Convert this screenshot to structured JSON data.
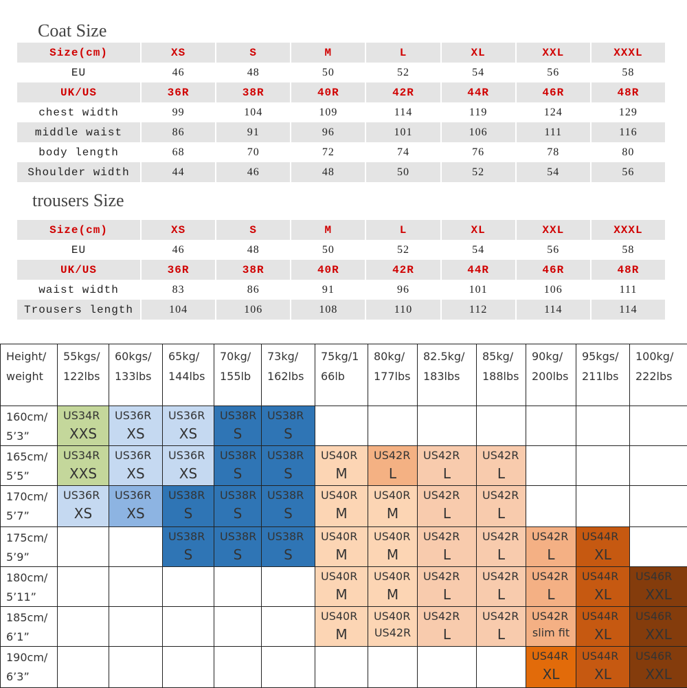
{
  "coat": {
    "title": "Coat Size",
    "rows": [
      [
        "Size(cm)",
        "XS",
        "S",
        "M",
        "L",
        "XL",
        "XXL",
        "XXXL"
      ],
      [
        "EU",
        "46",
        "48",
        "50",
        "52",
        "54",
        "56",
        "58"
      ],
      [
        "UK/US",
        "36R",
        "38R",
        "40R",
        "42R",
        "44R",
        "46R",
        "48R"
      ],
      [
        "chest width",
        "99",
        "104",
        "109",
        "114",
        "119",
        "124",
        "129"
      ],
      [
        "middle waist",
        "86",
        "91",
        "96",
        "101",
        "106",
        "111",
        "116"
      ],
      [
        "body length",
        "68",
        "70",
        "72",
        "74",
        "76",
        "78",
        "80"
      ],
      [
        "Shoulder width",
        "44",
        "46",
        "48",
        "50",
        "52",
        "54",
        "56"
      ]
    ]
  },
  "trousers": {
    "title": "trousers Size",
    "rows": [
      [
        "Size(cm)",
        "XS",
        "S",
        "M",
        "L",
        "XL",
        "XXL",
        "XXXL"
      ],
      [
        "EU",
        "46",
        "48",
        "50",
        "52",
        "54",
        "56",
        "58"
      ],
      [
        "UK/US",
        "36R",
        "38R",
        "40R",
        "42R",
        "44R",
        "46R",
        "48R"
      ],
      [
        "waist width",
        "83",
        "86",
        "91",
        "96",
        "101",
        "106",
        "111"
      ],
      [
        "Trousers length",
        "104",
        "106",
        "108",
        "110",
        "112",
        "114",
        "114"
      ]
    ]
  },
  "chart": {
    "header": [
      [
        "Height/",
        "weight"
      ],
      [
        "55kgs/",
        "122lbs"
      ],
      [
        "60kgs/",
        "133lbs"
      ],
      [
        "65kg/",
        "144lbs"
      ],
      [
        "70kg/",
        "155lb"
      ],
      [
        "73kg/",
        "162lbs"
      ],
      [
        "75kg/1",
        "66lb"
      ],
      [
        "80kg/",
        "177lbs"
      ],
      [
        "82.5kg/",
        "183lbs"
      ],
      [
        "85kg/",
        "188lbs"
      ],
      [
        "90kg/",
        "200lbs"
      ],
      [
        "95kgs/",
        "211lbs"
      ],
      [
        "100kg/",
        "222lbs"
      ]
    ],
    "rows": [
      {
        "label": [
          "160cm/",
          "5’3”"
        ],
        "cells": [
          {
            "code": "US34R",
            "size": "XXS",
            "color": "#c4d79b"
          },
          {
            "code": "US36R",
            "size": "XS",
            "color": "#c5d9f1"
          },
          {
            "code": "US36R",
            "size": "XS",
            "color": "#c5d9f1"
          },
          {
            "code": "US38R",
            "size": "S",
            "color": "#2f75b5"
          },
          {
            "code": "US38R",
            "size": "S",
            "color": "#2f75b5"
          },
          null,
          null,
          null,
          null,
          null,
          null,
          null
        ]
      },
      {
        "label": [
          "165cm/",
          "5’5”"
        ],
        "cells": [
          {
            "code": "US34R",
            "size": "XXS",
            "color": "#c4d79b"
          },
          {
            "code": "US36R",
            "size": "XS",
            "color": "#c5d9f1"
          },
          {
            "code": "US36R",
            "size": "XS",
            "color": "#c5d9f1"
          },
          {
            "code": "US38R",
            "size": "S",
            "color": "#2f75b5"
          },
          {
            "code": "US38R",
            "size": "S",
            "color": "#2f75b5"
          },
          {
            "code": "US40R",
            "size": "M",
            "color": "#fcd5b4"
          },
          {
            "code": "US42R",
            "size": "L",
            "color": "#f4b183"
          },
          {
            "code": "US42R",
            "size": "L",
            "color": "#f8cbad"
          },
          {
            "code": "US42R",
            "size": "L",
            "color": "#f8cbad"
          },
          null,
          null,
          null
        ]
      },
      {
        "label": [
          "170cm/",
          "5’7”"
        ],
        "cells": [
          {
            "code": "US36R",
            "size": "XS",
            "color": "#c5d9f1"
          },
          {
            "code": "US36R",
            "size": "XS",
            "color": "#8db4e2"
          },
          {
            "code": "US38R",
            "size": "S",
            "color": "#2f75b5"
          },
          {
            "code": "US38R",
            "size": "S",
            "color": "#2f75b5"
          },
          {
            "code": "US38R",
            "size": "S",
            "color": "#2f75b5"
          },
          {
            "code": "US40R",
            "size": "M",
            "color": "#fcd5b4"
          },
          {
            "code": "US40R",
            "size": "M",
            "color": "#fcd5b4"
          },
          {
            "code": "US42R",
            "size": "L",
            "color": "#f8cbad"
          },
          {
            "code": "US42R",
            "size": "L",
            "color": "#f8cbad"
          },
          null,
          null,
          null
        ]
      },
      {
        "label": [
          "175cm/",
          "5’9”"
        ],
        "cells": [
          null,
          null,
          {
            "code": "US38R",
            "size": "S",
            "color": "#2f75b5"
          },
          {
            "code": "US38R",
            "size": "S",
            "color": "#2f75b5"
          },
          {
            "code": "US38R",
            "size": "S",
            "color": "#2f75b5"
          },
          {
            "code": "US40R",
            "size": "M",
            "color": "#fcd5b4"
          },
          {
            "code": "US40R",
            "size": "M",
            "color": "#fcd5b4"
          },
          {
            "code": "US42R",
            "size": "L",
            "color": "#f8cbad"
          },
          {
            "code": "US42R",
            "size": "L",
            "color": "#f8cbad"
          },
          {
            "code": "US42R",
            "size": "L",
            "color": "#f4b084"
          },
          {
            "code": "US44R",
            "size": "XL",
            "color": "#c65911"
          },
          null
        ]
      },
      {
        "label": [
          "180cm/",
          "5’11”"
        ],
        "cells": [
          null,
          null,
          null,
          null,
          null,
          {
            "code": "US40R",
            "size": "M",
            "color": "#fcd5b4"
          },
          {
            "code": "US40R",
            "size": "M",
            "color": "#fcd5b4"
          },
          {
            "code": "US42R",
            "size": "L",
            "color": "#f8cbad"
          },
          {
            "code": "US42R",
            "size": "L",
            "color": "#f8cbad"
          },
          {
            "code": "US42R",
            "size": "L",
            "color": "#f4b084"
          },
          {
            "code": "US44R",
            "size": "XL",
            "color": "#c65911"
          },
          {
            "code": "US46R",
            "size": "XXL",
            "color": "#843c0c"
          }
        ]
      },
      {
        "label": [
          "185cm/",
          "6’1”"
        ],
        "cells": [
          null,
          null,
          null,
          null,
          null,
          {
            "code": "US40R",
            "size": "M",
            "color": "#fcd5b4"
          },
          {
            "code": "US40R",
            "size": "US42R",
            "color": "#fcd5b4"
          },
          {
            "code": "US42R",
            "size": "L",
            "color": "#f8cbad"
          },
          {
            "code": "US42R",
            "size": "L",
            "color": "#f8cbad"
          },
          {
            "code": "US42R",
            "size": "slim fit",
            "color": "#f4b084"
          },
          {
            "code": "US44R",
            "size": "XL",
            "color": "#c65911"
          },
          {
            "code": "US46R",
            "size": "XXL",
            "color": "#843c0c"
          }
        ]
      },
      {
        "label": [
          "190cm/",
          "6’3”"
        ],
        "cells": [
          null,
          null,
          null,
          null,
          null,
          null,
          null,
          null,
          null,
          {
            "code": "US44R",
            "size": "XL",
            "color": "#e26b0a"
          },
          {
            "code": "US44R",
            "size": "XL",
            "color": "#c65911"
          },
          {
            "code": "US46R",
            "size": "XXL",
            "color": "#843c0c"
          }
        ]
      }
    ]
  }
}
